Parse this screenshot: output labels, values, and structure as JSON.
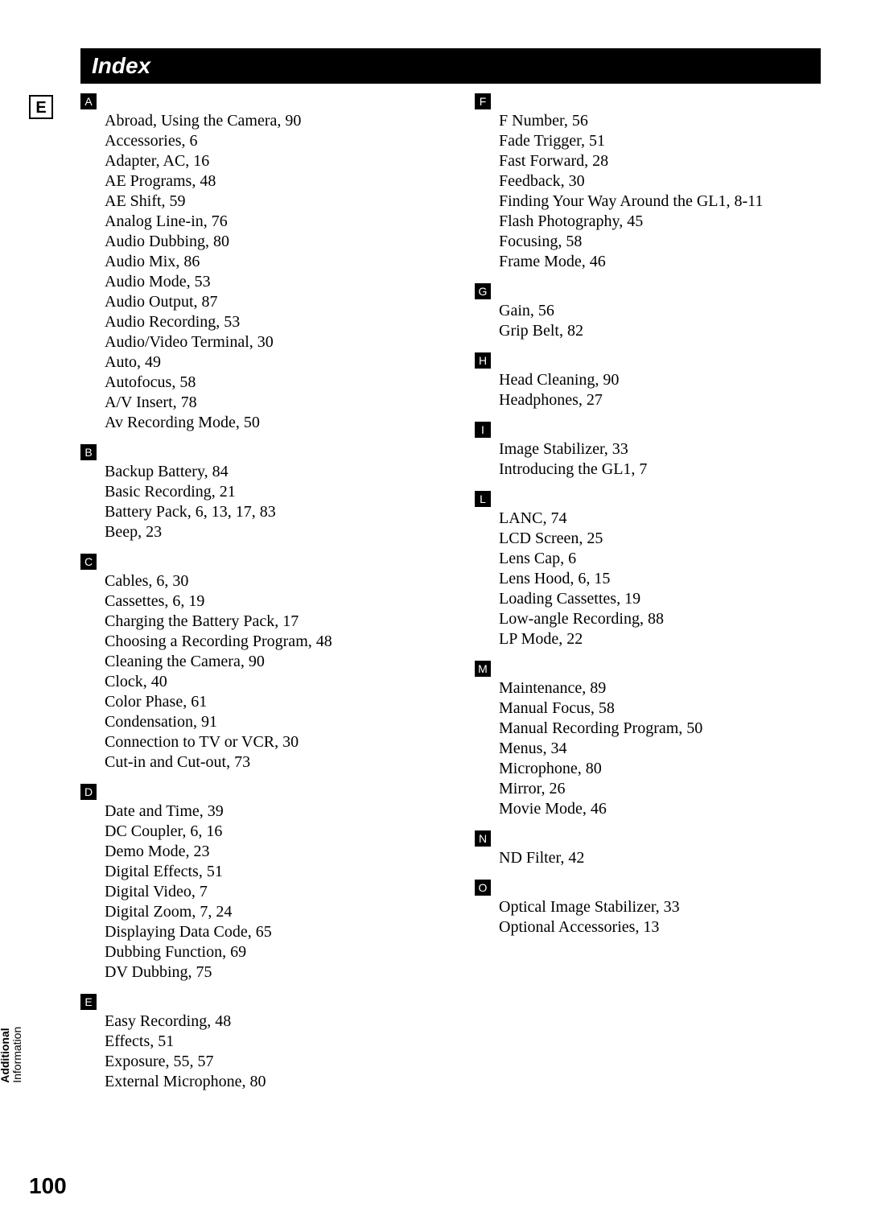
{
  "title": "Index",
  "lang_badge": "E",
  "page_number": "100",
  "side_tab": {
    "line1": "Additional",
    "line2": "Information"
  },
  "left": [
    {
      "letter": "A",
      "entries": [
        "Abroad, Using the Camera, 90",
        "Accessories, 6",
        "Adapter, AC, 16",
        "AE Programs, 48",
        "AE Shift, 59",
        "Analog Line-in, 76",
        "Audio Dubbing, 80",
        "Audio Mix, 86",
        "Audio Mode, 53",
        "Audio Output, 87",
        "Audio Recording, 53",
        "Audio/Video Terminal, 30",
        "Auto, 49",
        "Autofocus, 58",
        "A/V Insert, 78",
        "Av Recording Mode, 50"
      ]
    },
    {
      "letter": "B",
      "entries": [
        "Backup Battery, 84",
        "Basic Recording, 21",
        "Battery Pack, 6, 13, 17, 83",
        "Beep, 23"
      ]
    },
    {
      "letter": "C",
      "entries": [
        "Cables, 6, 30",
        "Cassettes, 6, 19",
        "Charging the Battery Pack, 17",
        "Choosing a Recording Program, 48",
        "Cleaning the Camera, 90",
        "Clock, 40",
        "Color Phase, 61",
        "Condensation, 91",
        "Connection to TV or VCR, 30",
        "Cut-in and Cut-out, 73"
      ]
    },
    {
      "letter": "D",
      "entries": [
        "Date and Time, 39",
        "DC Coupler, 6, 16",
        "Demo Mode, 23",
        "Digital Effects, 51",
        "Digital Video, 7",
        "Digital Zoom, 7, 24",
        "Displaying Data Code, 65",
        "Dubbing Function, 69",
        "DV Dubbing, 75"
      ]
    },
    {
      "letter": "E",
      "entries": [
        "Easy Recording, 48",
        "Effects, 51",
        "Exposure, 55, 57",
        "External Microphone, 80"
      ]
    }
  ],
  "right": [
    {
      "letter": "F",
      "entries": [
        "F Number, 56",
        "Fade Trigger, 51",
        "Fast Forward, 28",
        "Feedback, 30",
        "Finding Your Way Around the GL1, 8-11",
        "Flash Photography, 45",
        "Focusing, 58",
        "Frame Mode, 46"
      ]
    },
    {
      "letter": "G",
      "entries": [
        "Gain, 56",
        "Grip Belt, 82"
      ]
    },
    {
      "letter": "H",
      "entries": [
        "Head Cleaning, 90",
        "Headphones, 27"
      ]
    },
    {
      "letter": "I",
      "entries": [
        "Image Stabilizer, 33",
        "Introducing the GL1, 7"
      ]
    },
    {
      "letter": "L",
      "entries": [
        "LANC, 74",
        "LCD Screen, 25",
        "Lens Cap, 6",
        "Lens Hood, 6, 15",
        "Loading Cassettes, 19",
        "Low-angle Recording, 88",
        "LP Mode, 22"
      ]
    },
    {
      "letter": "M",
      "entries": [
        "Maintenance, 89",
        "Manual Focus, 58",
        "Manual Recording Program, 50",
        "Menus, 34",
        "Microphone, 80",
        "Mirror, 26",
        "Movie Mode, 46"
      ]
    },
    {
      "letter": "N",
      "entries": [
        "ND Filter, 42"
      ]
    },
    {
      "letter": "O",
      "entries": [
        "Optical Image Stabilizer, 33",
        "Optional Accessories, 13"
      ]
    }
  ]
}
